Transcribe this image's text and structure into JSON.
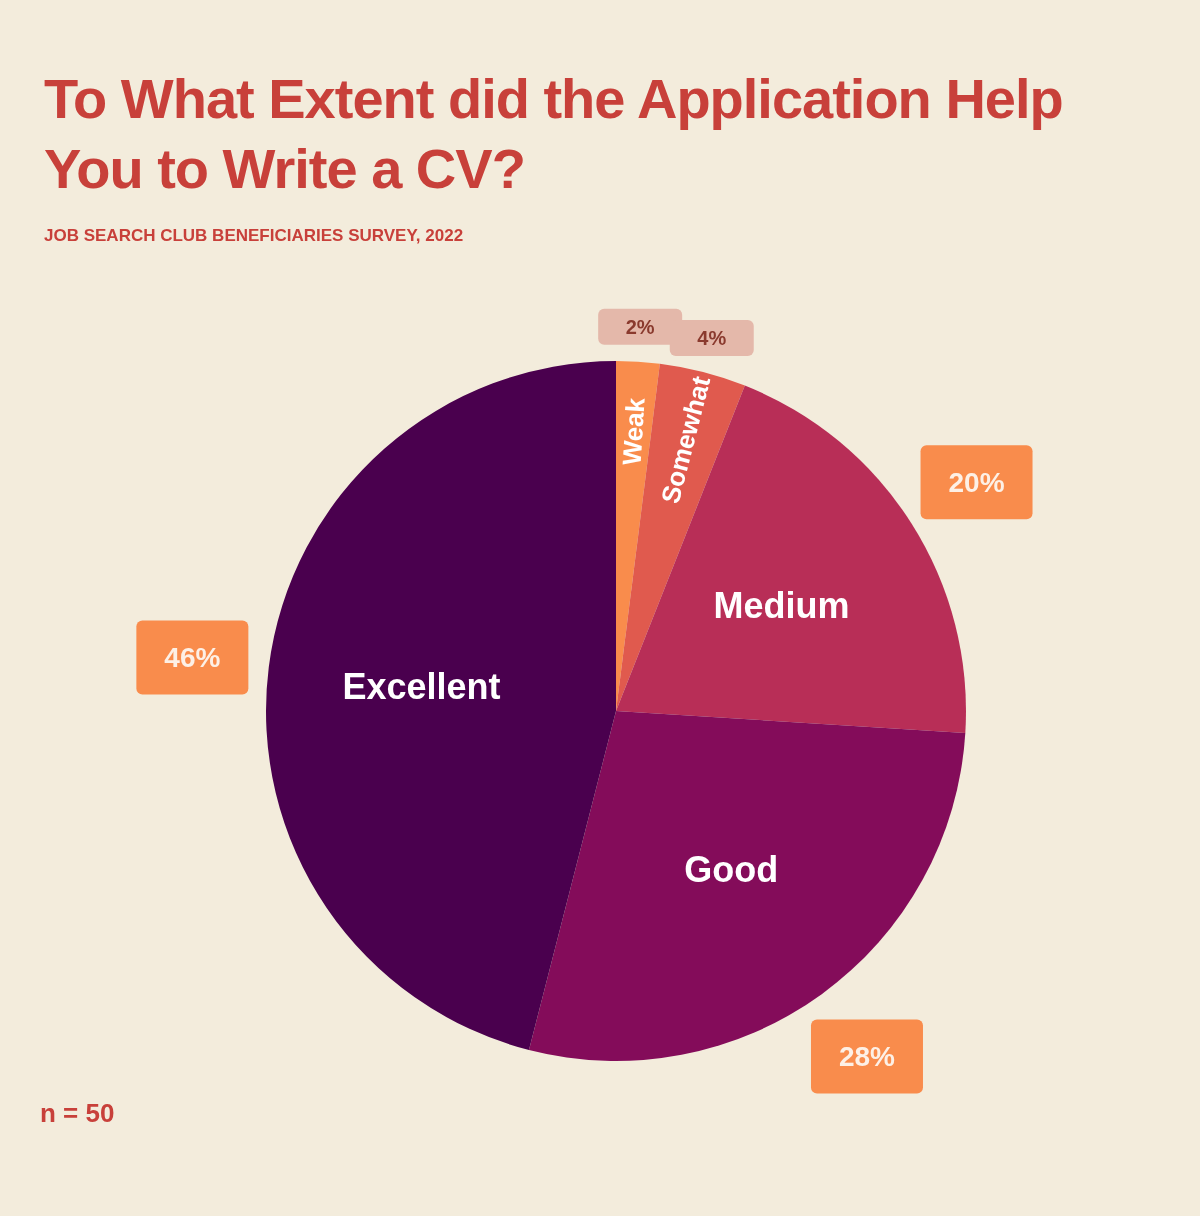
{
  "chart_data": {
    "type": "pie",
    "title": "To What Extent did the Application Help You to Write a CV?",
    "subtitle": "JOB SEARCH CLUB BENEFICIARIES SURVEY, 2022",
    "categories": [
      "Weak",
      "Somewhat",
      "Medium",
      "Good",
      "Excellent"
    ],
    "values": [
      2,
      4,
      20,
      28,
      46
    ],
    "colors": [
      "#f98c4c",
      "#e05a4e",
      "#b82e57",
      "#840c5a",
      "#4a004e"
    ],
    "value_labels": [
      "2%",
      "4%",
      "20%",
      "28%",
      "46%"
    ],
    "annotations": [
      "n = 50"
    ]
  }
}
